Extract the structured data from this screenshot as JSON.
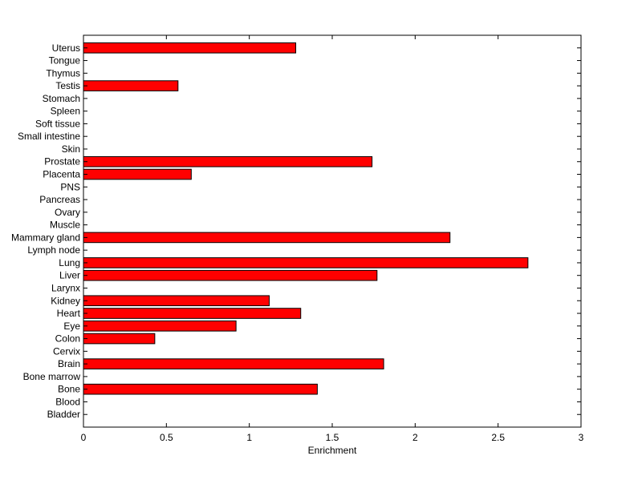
{
  "chart_data": {
    "type": "bar",
    "orientation": "horizontal",
    "title": "",
    "xlabel": "Enrichment",
    "ylabel": "",
    "xlim": [
      0,
      3
    ],
    "xticks": [
      "0",
      "0.5",
      "1",
      "1.5",
      "2",
      "2.5",
      "3"
    ],
    "grid": false,
    "bar_color": "#ff0000",
    "categories": [
      "Bladder",
      "Blood",
      "Bone",
      "Bone marrow",
      "Brain",
      "Cervix",
      "Colon",
      "Eye",
      "Heart",
      "Kidney",
      "Larynx",
      "Liver",
      "Lung",
      "Lymph node",
      "Mammary gland",
      "Muscle",
      "Ovary",
      "Pancreas",
      "PNS",
      "Placenta",
      "Prostate",
      "Skin",
      "Small intestine",
      "Soft tissue",
      "Spleen",
      "Stomach",
      "Testis",
      "Thymus",
      "Tongue",
      "Uterus"
    ],
    "values": [
      0,
      0,
      1.41,
      0,
      1.81,
      0,
      0.43,
      0.92,
      1.31,
      1.12,
      0,
      1.77,
      2.68,
      0,
      2.21,
      0,
      0,
      0,
      0,
      0.65,
      1.74,
      0,
      0,
      0,
      0,
      0,
      0.57,
      0,
      0,
      1.28
    ]
  }
}
